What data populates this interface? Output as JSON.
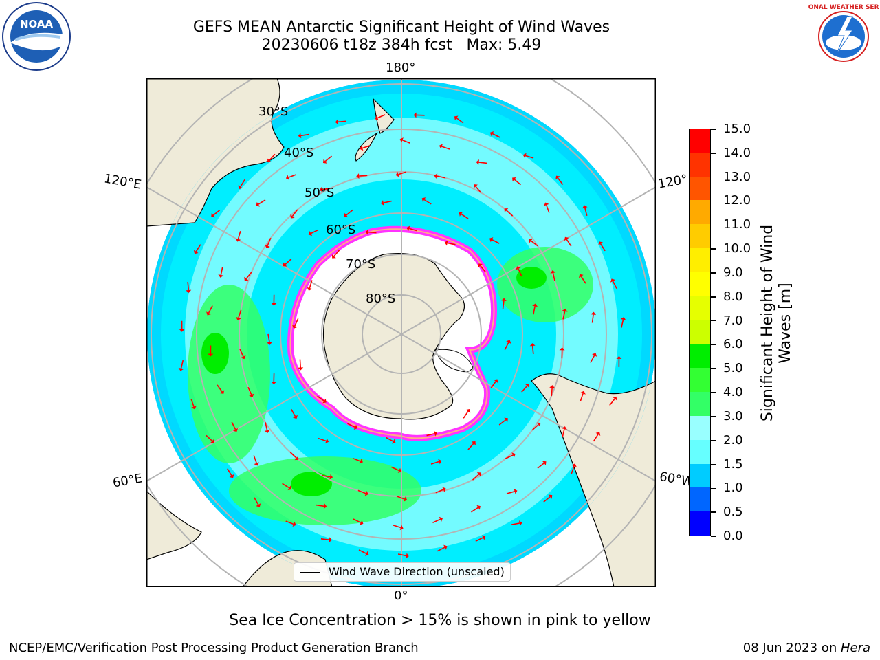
{
  "title": {
    "line1": "GEFS MEAN Antarctic Significant Height of Wind Waves",
    "line2": "20230606 t18z 384h fcst   Max: 5.49"
  },
  "logos": {
    "left": "NOAA",
    "right": "NATIONAL WEATHER SERVICE"
  },
  "map": {
    "longitude_labels": {
      "top": "180°",
      "upper_left": "120°E",
      "upper_right": "120°",
      "lower_left": "60°E",
      "lower_right": "60°W",
      "bottom": "0°"
    },
    "latitude_labels": [
      "30°S",
      "40°S",
      "50°S",
      "60°S",
      "70°S",
      "80°S"
    ],
    "legend": "Wind Wave Direction (unscaled)",
    "arrow_color": "#ff0000",
    "land_color": "#efebd9",
    "ice_edge_colors": [
      "#ff33ff",
      "#ffcc66",
      "#ffff66"
    ]
  },
  "colorbar": {
    "label": "Significant Height of Wind Waves [m]",
    "label_line1": "Significant Height of Wind",
    "label_line2": "Waves [m]",
    "ticks": [
      "0.0",
      "0.5",
      "1.0",
      "1.5",
      "2.0",
      "3.0",
      "4.0",
      "5.0",
      "6.0",
      "7.0",
      "8.0",
      "9.0",
      "10.0",
      "11.0",
      "12.0",
      "13.0",
      "14.0",
      "15.0"
    ],
    "colors": [
      "#0000ff",
      "#0066ff",
      "#00ccff",
      "#00ffff",
      "#66ffff",
      "#99ffff",
      "#33ff66",
      "#33ff33",
      "#00ee00",
      "#66ff00",
      "#ccff00",
      "#e6ff00",
      "#ffff00",
      "#ffee00",
      "#ffcc00",
      "#ffaa00",
      "#ff8800",
      "#ff5500",
      "#ff3300",
      "#ff0000"
    ]
  },
  "caption": "Sea Ice Concentration > 15% is shown in pink to yellow",
  "footer": {
    "left": "NCEP/EMC/Verification Post Processing Product Generation Branch",
    "right_date": "08 Jun 2023 on ",
    "right_host": "Hera"
  }
}
